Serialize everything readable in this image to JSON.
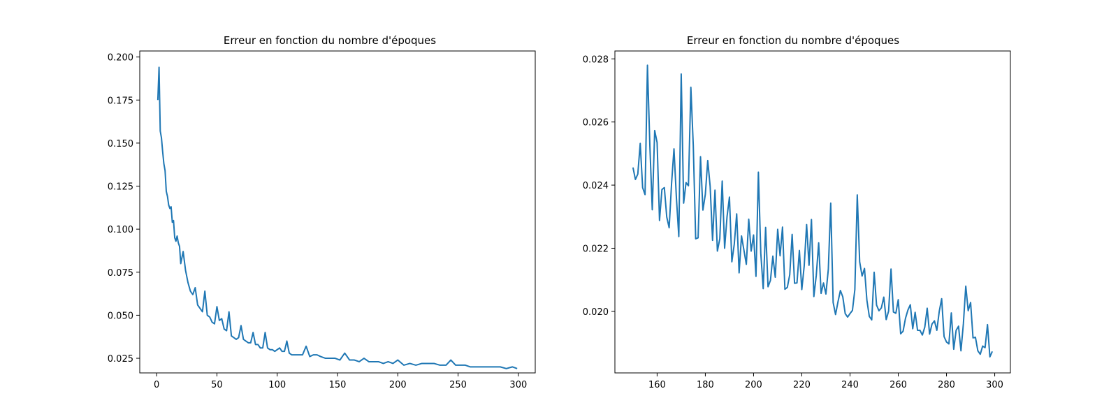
{
  "colors": {
    "series": "#1f77b4",
    "axes": "#000000",
    "background": "#ffffff"
  },
  "chart_data": [
    {
      "type": "line",
      "title": "Erreur en fonction du nombre d'époques",
      "xlabel": "",
      "ylabel": "",
      "xlim": [
        -14,
        314
      ],
      "ylim": [
        0.0165,
        0.2035
      ],
      "xticks": [
        0,
        50,
        100,
        150,
        200,
        250,
        300
      ],
      "xtick_labels": [
        "0",
        "50",
        "100",
        "150",
        "200",
        "250",
        "300"
      ],
      "yticks": [
        0.025,
        0.05,
        0.075,
        0.1,
        0.125,
        0.15,
        0.175,
        0.2
      ],
      "ytick_labels": [
        "0.025",
        "0.050",
        "0.075",
        "0.100",
        "0.125",
        "0.150",
        "0.175",
        "0.200"
      ],
      "grid": false,
      "series": [
        {
          "x": [
            1,
            2,
            3,
            4,
            5,
            6,
            7,
            8,
            9,
            10,
            11,
            12,
            13,
            14,
            15,
            16,
            17,
            18,
            19,
            20,
            22,
            24,
            26,
            28,
            30,
            32,
            34,
            36,
            38,
            40,
            42,
            44,
            46,
            48,
            50,
            52,
            54,
            56,
            58,
            60,
            62,
            64,
            66,
            68,
            70,
            72,
            74,
            76,
            78,
            80,
            82,
            84,
            86,
            88,
            90,
            92,
            94,
            96,
            98,
            100,
            102,
            104,
            106,
            108,
            110,
            112,
            115,
            118,
            121,
            124,
            127,
            130,
            133,
            136,
            140,
            144,
            148,
            152,
            156,
            160,
            164,
            168,
            172,
            176,
            180,
            184,
            188,
            192,
            196,
            200,
            205,
            210,
            215,
            220,
            225,
            230,
            235,
            240,
            244,
            248,
            252,
            256,
            260,
            265,
            270,
            275,
            280,
            285,
            290,
            295,
            299
          ],
          "y": [
            0.175,
            0.194,
            0.157,
            0.153,
            0.145,
            0.138,
            0.134,
            0.122,
            0.119,
            0.114,
            0.112,
            0.113,
            0.104,
            0.105,
            0.095,
            0.093,
            0.096,
            0.092,
            0.09,
            0.08,
            0.087,
            0.076,
            0.069,
            0.064,
            0.062,
            0.066,
            0.056,
            0.054,
            0.052,
            0.064,
            0.05,
            0.049,
            0.046,
            0.045,
            0.055,
            0.047,
            0.048,
            0.042,
            0.041,
            0.052,
            0.038,
            0.037,
            0.036,
            0.037,
            0.044,
            0.036,
            0.035,
            0.034,
            0.034,
            0.04,
            0.033,
            0.033,
            0.031,
            0.031,
            0.04,
            0.031,
            0.03,
            0.03,
            0.029,
            0.03,
            0.031,
            0.029,
            0.029,
            0.035,
            0.028,
            0.027,
            0.027,
            0.027,
            0.027,
            0.032,
            0.026,
            0.027,
            0.027,
            0.026,
            0.025,
            0.025,
            0.025,
            0.024,
            0.028,
            0.024,
            0.024,
            0.023,
            0.025,
            0.023,
            0.023,
            0.023,
            0.022,
            0.023,
            0.022,
            0.024,
            0.021,
            0.022,
            0.021,
            0.022,
            0.022,
            0.022,
            0.021,
            0.021,
            0.024,
            0.021,
            0.021,
            0.021,
            0.02,
            0.02,
            0.02,
            0.02,
            0.02,
            0.02,
            0.019,
            0.02,
            0.019
          ]
        }
      ]
    },
    {
      "type": "line",
      "title": "Erreur en fonction du nombre d'époques",
      "xlabel": "",
      "ylabel": "",
      "xlim": [
        142.5,
        306.5
      ],
      "ylim": [
        0.01805,
        0.02825
      ],
      "xticks": [
        160,
        180,
        200,
        220,
        240,
        260,
        280,
        300
      ],
      "xtick_labels": [
        "160",
        "180",
        "200",
        "220",
        "240",
        "260",
        "280",
        "300"
      ],
      "yticks": [
        0.02,
        0.022,
        0.024,
        0.026,
        0.028
      ],
      "ytick_labels": [
        "0.020",
        "0.022",
        "0.024",
        "0.026",
        "0.028"
      ],
      "grid": false,
      "series": [
        {
          "x": [
            150,
            151,
            152,
            153,
            154,
            155,
            156,
            157,
            158,
            159,
            160,
            161,
            162,
            163,
            164,
            165,
            166,
            167,
            168,
            169,
            170,
            171,
            172,
            173,
            174,
            175,
            176,
            177,
            178,
            179,
            180,
            181,
            182,
            183,
            184,
            185,
            186,
            187,
            188,
            189,
            190,
            191,
            192,
            193,
            194,
            195,
            196,
            197,
            198,
            199,
            200,
            201,
            202,
            203,
            204,
            205,
            206,
            207,
            208,
            209,
            210,
            211,
            212,
            213,
            214,
            215,
            216,
            217,
            218,
            219,
            220,
            221,
            222,
            223,
            224,
            225,
            226,
            227,
            228,
            229,
            230,
            231,
            232,
            233,
            234,
            235,
            236,
            237,
            238,
            239,
            240,
            241,
            242,
            243,
            244,
            245,
            246,
            247,
            248,
            249,
            250,
            251,
            252,
            253,
            254,
            255,
            256,
            257,
            258,
            259,
            260,
            261,
            262,
            263,
            264,
            265,
            266,
            267,
            268,
            269,
            270,
            271,
            272,
            273,
            274,
            275,
            276,
            277,
            278,
            279,
            280,
            281,
            282,
            283,
            284,
            285,
            286,
            287,
            288,
            289,
            290,
            291,
            292,
            293,
            294,
            295,
            296,
            297,
            298,
            299
          ],
          "y": [
            0.02456,
            0.02418,
            0.02435,
            0.02532,
            0.02392,
            0.0237,
            0.0278,
            0.02525,
            0.02322,
            0.02573,
            0.02535,
            0.02288,
            0.02386,
            0.02392,
            0.02299,
            0.02265,
            0.02405,
            0.02515,
            0.0236,
            0.02237,
            0.02752,
            0.02343,
            0.02408,
            0.02398,
            0.0271,
            0.02526,
            0.0223,
            0.02233,
            0.0249,
            0.02321,
            0.02371,
            0.02478,
            0.02396,
            0.02225,
            0.02384,
            0.02191,
            0.0223,
            0.02413,
            0.022,
            0.023,
            0.02362,
            0.02157,
            0.02213,
            0.02309,
            0.02122,
            0.02239,
            0.02194,
            0.02149,
            0.02292,
            0.02191,
            0.02242,
            0.02111,
            0.02441,
            0.02184,
            0.02072,
            0.02266,
            0.02078,
            0.02098,
            0.02175,
            0.02108,
            0.0226,
            0.02176,
            0.02267,
            0.0207,
            0.02076,
            0.02116,
            0.02244,
            0.02089,
            0.0209,
            0.02193,
            0.02069,
            0.02144,
            0.02275,
            0.02146,
            0.02291,
            0.02047,
            0.02114,
            0.02217,
            0.02057,
            0.0209,
            0.02055,
            0.02133,
            0.02343,
            0.02028,
            0.0199,
            0.0203,
            0.02066,
            0.02046,
            0.01993,
            0.01982,
            0.01993,
            0.02003,
            0.02069,
            0.02369,
            0.02157,
            0.02112,
            0.02136,
            0.02035,
            0.01984,
            0.01973,
            0.02124,
            0.0202,
            0.02002,
            0.02011,
            0.02045,
            0.01974,
            0.02001,
            0.02134,
            0.01998,
            0.01994,
            0.02037,
            0.01929,
            0.01937,
            0.01978,
            0.02004,
            0.02021,
            0.01945,
            0.01997,
            0.0194,
            0.0194,
            0.01925,
            0.0195,
            0.0201,
            0.01928,
            0.0196,
            0.0197,
            0.0194,
            0.02,
            0.0204,
            0.0192,
            0.01903,
            0.01897,
            0.01995,
            0.0188,
            0.0194,
            0.01953,
            0.01875,
            0.0196,
            0.0208,
            0.02002,
            0.02028,
            0.01916,
            0.01918,
            0.01875,
            0.01864,
            0.0189,
            0.01885,
            0.01958,
            0.01856,
            0.01873
          ]
        }
      ]
    }
  ]
}
